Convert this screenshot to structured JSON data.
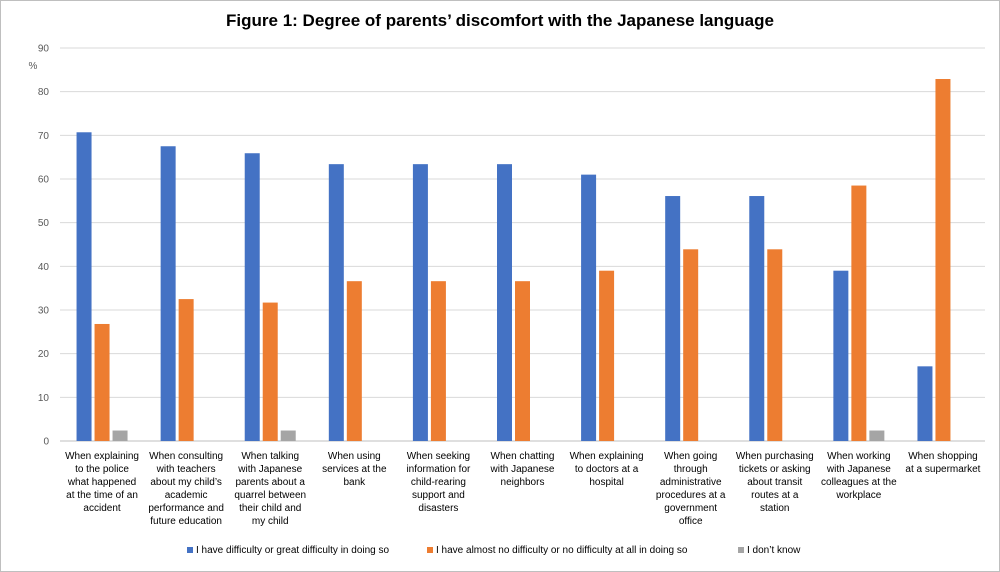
{
  "chart_data": {
    "type": "bar",
    "title": "Figure 1: Degree of parents’ discomfort with the Japanese language",
    "ylabel": "%",
    "ylim": [
      0,
      90
    ],
    "yticks": [
      0,
      10,
      20,
      30,
      40,
      50,
      60,
      70,
      80,
      90
    ],
    "grid": true,
    "legend_position": "bottom",
    "categories": [
      [
        "When explaining",
        "to the police",
        "what happened",
        "at the time of an",
        "accident"
      ],
      [
        "When consulting",
        "with teachers",
        "about my child’s",
        "academic",
        "performance and",
        "future education"
      ],
      [
        "When talking",
        "with Japanese",
        "parents about a",
        "quarrel between",
        "their child and",
        "my child"
      ],
      [
        "When using",
        "services at the",
        "bank"
      ],
      [
        "When seeking",
        "information for",
        "child-rearing",
        "support and",
        "disasters"
      ],
      [
        "When chatting",
        "with Japanese",
        "neighbors"
      ],
      [
        "When explaining",
        "to doctors at a",
        "hospital"
      ],
      [
        "When going",
        "through",
        "administrative",
        "procedures at a",
        "government",
        "office"
      ],
      [
        "When purchasing",
        "tickets or asking",
        "about transit",
        "routes at a",
        "station"
      ],
      [
        "When working",
        "with Japanese",
        "colleagues at the",
        "workplace"
      ],
      [
        "When shopping",
        "at a supermarket"
      ]
    ],
    "series": [
      {
        "name": "I have difficulty or great difficulty in doing so",
        "color": "#4472C4",
        "values": [
          70.7,
          67.5,
          65.9,
          63.4,
          63.4,
          63.4,
          61.0,
          56.1,
          56.1,
          39.0,
          17.1
        ]
      },
      {
        "name": "I have almost no difficulty or no difficulty at all in doing so",
        "color": "#ED7D31",
        "values": [
          26.8,
          32.5,
          31.7,
          36.6,
          36.6,
          36.6,
          39.0,
          43.9,
          43.9,
          58.5,
          82.9
        ]
      },
      {
        "name": "I don’t know",
        "color": "#A5A5A5",
        "values": [
          2.4,
          0,
          2.4,
          0,
          0,
          0,
          0,
          0,
          0,
          2.4,
          0
        ]
      }
    ]
  }
}
